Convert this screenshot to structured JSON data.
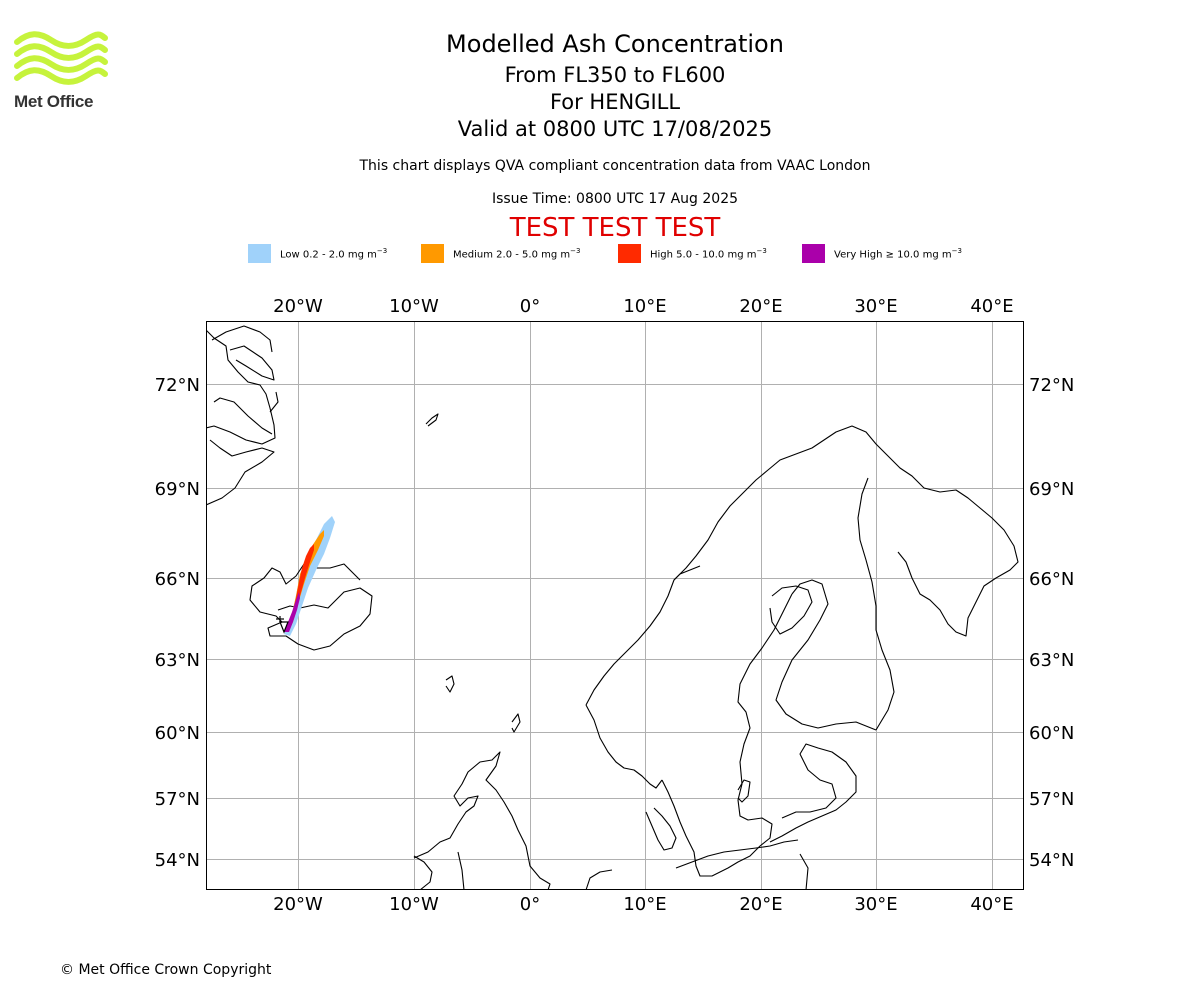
{
  "header": {
    "title": "Modelled Ash Concentration",
    "levels": "From FL350 to FL600",
    "volcano": "For HENGILL",
    "valid": "Valid at 0800 UTC 17/08/2025",
    "qva_note": "This chart displays QVA compliant concentration data from VAAC London",
    "issue_time": "Issue Time: 0800 UTC 17 Aug 2025",
    "test_banner": "TEST TEST TEST"
  },
  "logo": {
    "text": "Met Office",
    "color": "#c6f33c"
  },
  "legend": [
    {
      "label": "Low 0.2 - 2.0 mg m",
      "unit_exp": "−3",
      "color": "#a0d2fa"
    },
    {
      "label": "Medium 2.0 - 5.0 mg m",
      "unit_exp": "−3",
      "color": "#ff9900"
    },
    {
      "label": "High 5.0 - 10.0 mg m",
      "unit_exp": "−3",
      "color": "#ff2a00"
    },
    {
      "label": "Very High ≥ 10.0 mg m",
      "unit_exp": "−3",
      "color": "#aa00aa"
    }
  ],
  "map": {
    "lon_labels": [
      "20°W",
      "10°W",
      "0°",
      "10°E",
      "20°E",
      "30°E",
      "40°E"
    ],
    "lat_labels": [
      "72°N",
      "69°N",
      "66°N",
      "63°N",
      "60°N",
      "57°N",
      "54°N"
    ],
    "volcano_marker": "triangle"
  },
  "footer": {
    "copyright": "© Met Office Crown Copyright"
  }
}
